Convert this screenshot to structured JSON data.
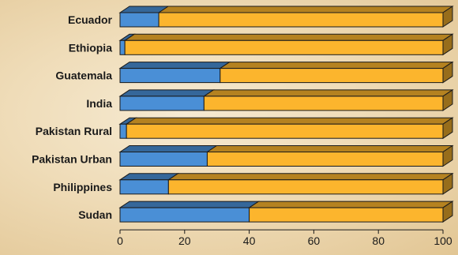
{
  "chart_data": {
    "type": "bar",
    "orientation": "horizontal",
    "stacked": true,
    "style": "3d",
    "categories": [
      "Ecuador",
      "Ethiopia",
      "Guatemala",
      "India",
      "Pakistan Rural",
      "Pakistan Urban",
      "Philippines",
      "Sudan"
    ],
    "series": [
      {
        "values": [
          12,
          1.5,
          31,
          26,
          2,
          27,
          15,
          40
        ],
        "color": "#4a8fd6"
      },
      {
        "values": [
          88,
          98.5,
          69,
          74,
          98,
          73,
          85,
          60
        ],
        "color": "#fcb52d"
      }
    ],
    "x_ticks": [
      "0",
      "20",
      "40",
      "60",
      "80",
      "100"
    ],
    "xlim": [
      0,
      100
    ],
    "grid": false,
    "legend": "none"
  }
}
